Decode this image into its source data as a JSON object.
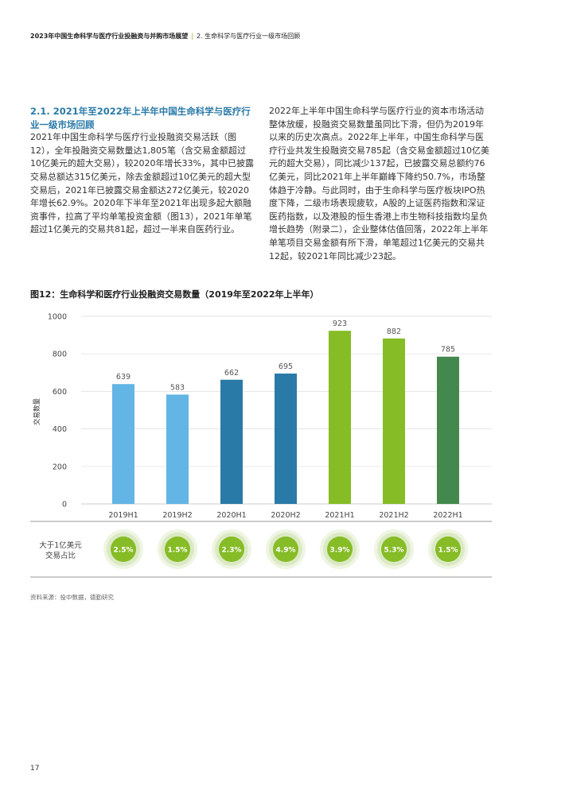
{
  "header": {
    "title": "2023年中国生命科学与医疗行业投融资与并购市场展望",
    "separator": "|",
    "subtitle": "2. 生命科学与医疗行业一级市场回顾"
  },
  "left_column": {
    "section_title": "2.1. 2021年至2022年上半年中国生命科学与医疗行业一级市场回顾",
    "body": "2021年中国生命科学与医疗行业投融资交易活跃（图12），全年投融资交易数量达1,805笔（含交易金额超过10亿美元的超大交易），较2020年增长33%，其中已披露交易总额达315亿美元，除去金额超过10亿美元的超大型交易后，2021年已披露交易金额达272亿美元，较2020年增长62.9%。2020年下半年至2021年出现多起大额融资事件，拉高了平均单笔投资金额（图13），2021年单笔超过1亿美元的交易共81起，超过一半来自医药行业。"
  },
  "right_column": {
    "body": "2022年上半年中国生命科学与医疗行业的资本市场活动整体放缓，投融资交易数量虽同比下滑，但仍为2019年以来的历史次高点。2022年上半年，中国生命科学与医疗行业共发生投融资交易785起（含交易金额超过10亿美元的超大交易），同比减少137起，已披露交易总额约76亿美元，同比2021年上半年巅峰下降约50.7%，市场整体趋于冷静。与此同时，由于生命科学与医疗板块IPO热度下降，二级市场表现疲软，A股的上证医药指数和深证医药指数，以及港股的恒生香港上市生物科技指数均呈负增长趋势（附录二），企业整体估值回落，2022年上半年单笔项目交易金额有所下滑，单笔超过1亿美元的交易共12起，较2021年同比减少23起。"
  },
  "figure": {
    "title": "图12：生命科学和医疗行业投融资交易数量（2019年至2022年上半年）",
    "ylabel": "交易数量",
    "badge_row_label_line1": "大于1亿美元",
    "badge_row_label_line2": "交易占比",
    "source": "资料来源：投中数据，德勤研究"
  },
  "chart_data": {
    "type": "bar",
    "title": "图12：生命科学和医疗行业投融资交易数量（2019年至2022年上半年）",
    "ylabel": "交易数量",
    "xlabel": "",
    "ylim": [
      0,
      1000
    ],
    "yticks": [
      0,
      200,
      400,
      600,
      800,
      1000
    ],
    "grid": true,
    "categories": [
      "2019H1",
      "2019H2",
      "2020H1",
      "2020H2",
      "2021H1",
      "2021H2",
      "2022H1"
    ],
    "values": [
      639,
      583,
      662,
      695,
      923,
      882,
      785
    ],
    "bar_colors": [
      "#62b5e5",
      "#62b5e5",
      "#2a7aa8",
      "#2a7aa8",
      "#86bc25",
      "#86bc25",
      "#43894e"
    ],
    "share_over_100m_usd": [
      "2.5%",
      "1.5%",
      "2.3%",
      "4.9%",
      "3.9%",
      "5.3%",
      "1.5%"
    ]
  },
  "colors": {
    "accent_blue": "#2a7aa8",
    "light_blue": "#62b5e5",
    "green": "#86bc25",
    "dark_green": "#43894e",
    "badge_ring": "#dbe9c4"
  },
  "page_number": "17"
}
